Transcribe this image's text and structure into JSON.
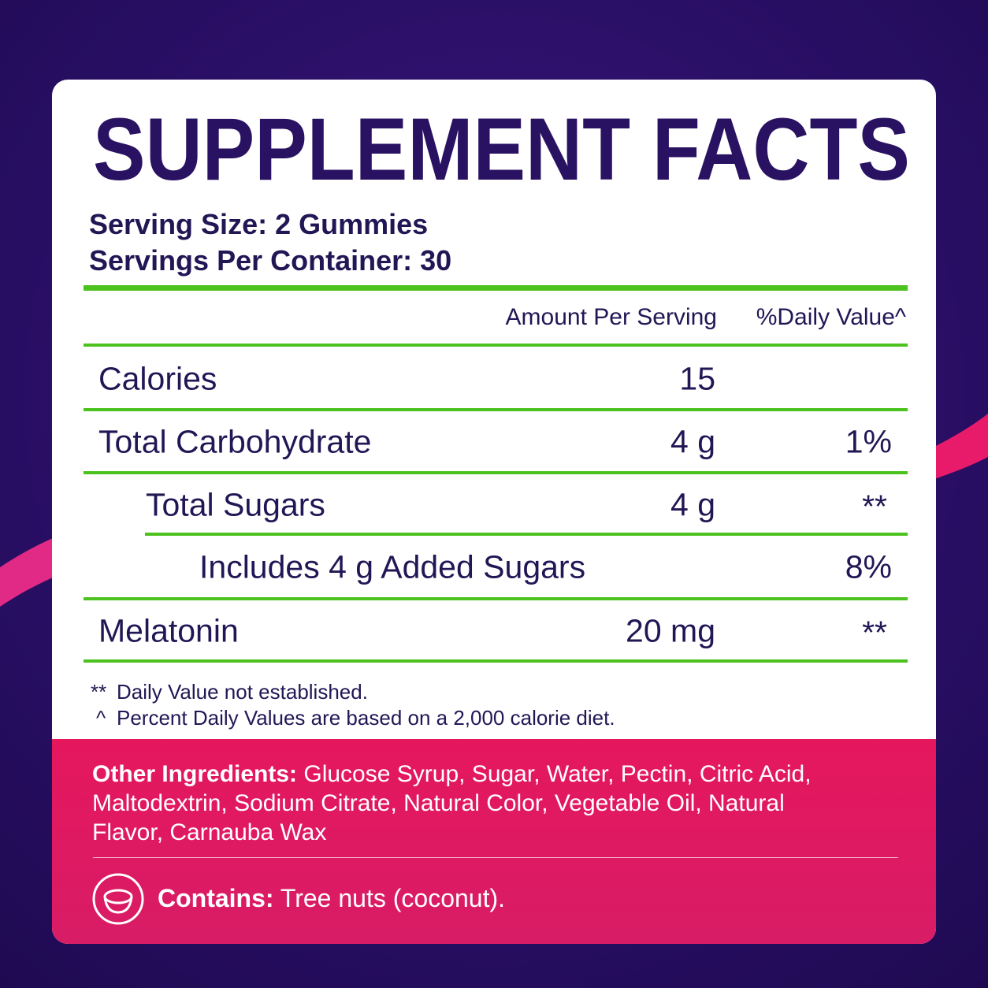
{
  "title": "SUPPLEMENT FACTS",
  "serving": {
    "size": "Serving Size: 2 Gummies",
    "per_container": "Servings Per Container: 30"
  },
  "table": {
    "header": {
      "amount": "Amount Per Serving",
      "daily_value": "%Daily Value^"
    },
    "rows": [
      {
        "label": "Calories",
        "amount": "15"
      },
      {
        "label": "Total Carbohydrate",
        "amount": "4 g",
        "daily_value": "1%"
      },
      {
        "label": "Total Sugars",
        "amount": "4 g",
        "daily_value": "**"
      },
      {
        "label": "Includes 4 g Added Sugars",
        "daily_value": "8%"
      },
      {
        "label": "Melatonin",
        "amount": "20 mg",
        "daily_value": "**"
      }
    ]
  },
  "footnotes": [
    {
      "symbol": "**",
      "text": "Daily Value not established."
    },
    {
      "symbol": "^",
      "text": "Percent Daily Values are based on a 2,000 calorie diet."
    }
  ],
  "other_ingredients": {
    "label": "Other Ingredients:",
    "text": "Glucose Syrup, Sugar, Water, Pectin, Citric Acid, Maltodextrin, Sodium Citrate, Natural Color, Vegetable Oil, Natural Flavor, Carnauba Wax"
  },
  "contains": {
    "label": "Contains:",
    "text": "Tree nuts (coconut)."
  }
}
